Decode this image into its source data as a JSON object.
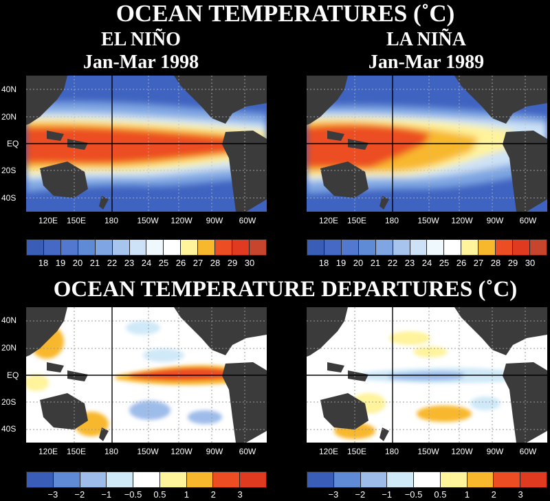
{
  "titles": {
    "main": "OCEAN TEMPERATURES (˚C)",
    "left_event": "EL NIÑO",
    "left_period": "Jan-Mar 1998",
    "right_event": "LA NIÑA",
    "right_period": "Jan-Mar 1989",
    "departures": "OCEAN TEMPERATURE DEPARTURES (˚C)"
  },
  "axes": {
    "lat_labels": [
      "40N",
      "20N",
      "EQ",
      "20S",
      "40S"
    ],
    "lon_labels": [
      "120E",
      "150E",
      "180",
      "150W",
      "120W",
      "90W",
      "60W"
    ]
  },
  "temperature_scale": {
    "ticks": [
      "18",
      "19",
      "20",
      "21",
      "22",
      "23",
      "24",
      "25",
      "26",
      "27",
      "28",
      "29",
      "30"
    ],
    "colors": [
      "#3a5db8",
      "#4569c4",
      "#5279cf",
      "#5f8ad6",
      "#7fa6e2",
      "#a7c4ee",
      "#cde2f6",
      "#eef8fd",
      "#ffffff",
      "#fff39b",
      "#f8b82e",
      "#ec4d22",
      "#e03a20",
      "#c8452d"
    ]
  },
  "departure_scale": {
    "ticks": [
      "−3",
      "−2",
      "−1",
      "−0.5",
      "0.5",
      "1",
      "2",
      "3"
    ],
    "colors": [
      "#3a5db8",
      "#5f8ad6",
      "#9ebcea",
      "#cfe9f8",
      "#ffffff",
      "#fff39b",
      "#f8b82e",
      "#ec4d22",
      "#e03a20"
    ]
  },
  "colors": {
    "land": "#3b3b3b",
    "warm_pool": "#ec4d22",
    "cold_ocean": "#3f63c0"
  }
}
